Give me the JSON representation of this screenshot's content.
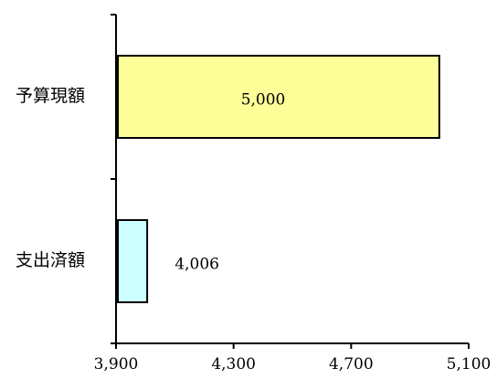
{
  "chart_data": {
    "type": "bar",
    "orientation": "horizontal",
    "categories": [
      "予算現額",
      "支出済額"
    ],
    "values": [
      5000,
      4006
    ],
    "data_labels": [
      "5,000",
      "4,006"
    ],
    "bar_colors": [
      "#ffff99",
      "#ccffff"
    ],
    "xlim": [
      3900,
      5100
    ],
    "xticks": [
      3900,
      4300,
      4700,
      5100
    ],
    "xtick_labels": [
      "3,900",
      "4,300",
      "4,700",
      "5,100"
    ],
    "grid": false,
    "legend": "none"
  }
}
